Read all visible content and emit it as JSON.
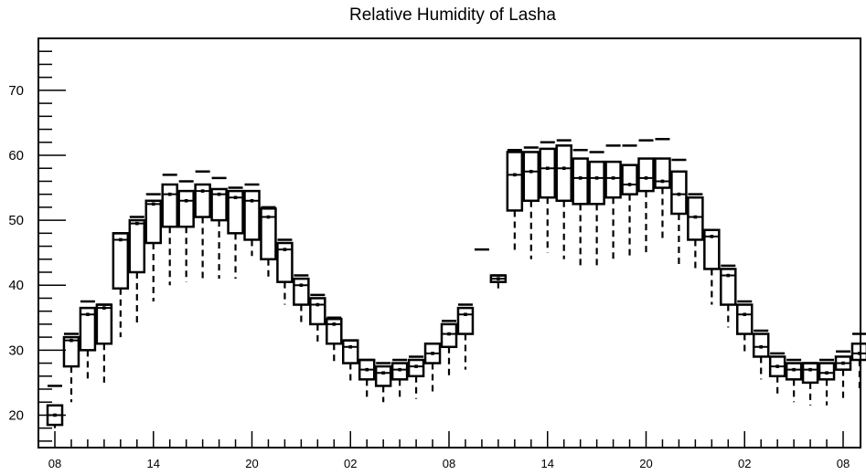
{
  "chart_data": {
    "type": "box",
    "title": "Relative Humidity of Lasha",
    "xlabel": "",
    "ylabel": "",
    "ylim": [
      15,
      78
    ],
    "ytick_values": [
      20,
      30,
      40,
      50,
      60,
      70
    ],
    "yticks": [
      "20",
      "30",
      "40",
      "50",
      "60",
      "70"
    ],
    "xticks": [
      "08",
      "14",
      "20",
      "02",
      "08",
      "14",
      "20",
      "02",
      "08"
    ],
    "grid": false,
    "legend": "none",
    "boxes": [
      {
        "q1": 18.5,
        "median": 20.0,
        "q3": 21.5,
        "min": 18.0,
        "max": 24.5
      },
      {
        "q1": 27.5,
        "median": 31.5,
        "q3": 32.0,
        "min": 22.0,
        "max": 32.5
      },
      {
        "q1": 30.0,
        "median": 35.5,
        "q3": 36.5,
        "min": 25.0,
        "max": 37.5
      },
      {
        "q1": 31.0,
        "median": 36.5,
        "q3": 37.0,
        "min": 25.0,
        "max": 37.0
      },
      {
        "q1": 39.5,
        "median": 47.0,
        "q3": 48.0,
        "min": 32.0,
        "max": 48.0
      },
      {
        "q1": 42.0,
        "median": 49.5,
        "q3": 50.0,
        "min": 34.0,
        "max": 50.5
      },
      {
        "q1": 46.5,
        "median": 52.5,
        "q3": 53.0,
        "min": 37.5,
        "max": 54.0
      },
      {
        "q1": 49.0,
        "median": 54.0,
        "q3": 55.5,
        "min": 40.0,
        "max": 57.0
      },
      {
        "q1": 49.0,
        "median": 53.0,
        "q3": 54.5,
        "min": 40.5,
        "max": 56.0
      },
      {
        "q1": 50.5,
        "median": 54.5,
        "q3": 55.5,
        "min": 41.0,
        "max": 57.5
      },
      {
        "q1": 50.0,
        "median": 54.0,
        "q3": 54.8,
        "min": 41.0,
        "max": 56.5
      },
      {
        "q1": 48.0,
        "median": 53.5,
        "q3": 54.5,
        "min": 41.0,
        "max": 55.0
      },
      {
        "q1": 47.0,
        "median": 53.0,
        "q3": 54.5,
        "min": 44.5,
        "max": 55.5
      },
      {
        "q1": 44.0,
        "median": 50.5,
        "q3": 51.8,
        "min": 41.0,
        "max": 52.0
      },
      {
        "q1": 40.5,
        "median": 45.5,
        "q3": 46.5,
        "min": 37.0,
        "max": 47.0
      },
      {
        "q1": 37.0,
        "median": 40.0,
        "q3": 41.0,
        "min": 34.0,
        "max": 41.5
      },
      {
        "q1": 34.0,
        "median": 37.0,
        "q3": 38.0,
        "min": 31.0,
        "max": 38.5
      },
      {
        "q1": 31.0,
        "median": 34.0,
        "q3": 34.8,
        "min": 28.0,
        "max": 35.0
      },
      {
        "q1": 28.0,
        "median": 30.5,
        "q3": 31.5,
        "min": 25.0,
        "max": 31.5
      },
      {
        "q1": 25.5,
        "median": 27.0,
        "q3": 28.5,
        "min": 22.5,
        "max": 28.5
      },
      {
        "q1": 24.5,
        "median": 26.5,
        "q3": 27.5,
        "min": 22.0,
        "max": 28.0
      },
      {
        "q1": 25.5,
        "median": 27.0,
        "q3": 28.0,
        "min": 22.5,
        "max": 28.5
      },
      {
        "q1": 26.0,
        "median": 27.5,
        "q3": 28.5,
        "min": 22.5,
        "max": 29.0
      },
      {
        "q1": 28.0,
        "median": 29.5,
        "q3": 31.0,
        "min": 23.0,
        "max": 31.0
      },
      {
        "q1": 30.5,
        "median": 32.5,
        "q3": 34.0,
        "min": 25.5,
        "max": 34.5
      },
      {
        "q1": 32.5,
        "median": 35.5,
        "q3": 36.5,
        "min": 27.0,
        "max": 37.0
      },
      {
        "q1": null,
        "median": null,
        "q3": null,
        "min": null,
        "max": 45.5
      },
      {
        "q1": 40.5,
        "median": 41.0,
        "q3": 41.5,
        "min": 39.5,
        "max": 41.5
      },
      {
        "q1": 51.5,
        "median": 57.0,
        "q3": 60.5,
        "min": 45.0,
        "max": 60.8
      },
      {
        "q1": 53.0,
        "median": 57.5,
        "q3": 60.5,
        "min": 44.0,
        "max": 61.2
      },
      {
        "q1": 53.5,
        "median": 58.0,
        "q3": 61.0,
        "min": 45.0,
        "max": 62.0
      },
      {
        "q1": 53.0,
        "median": 58.0,
        "q3": 61.5,
        "min": 44.0,
        "max": 62.3
      },
      {
        "q1": 52.5,
        "median": 56.5,
        "q3": 59.5,
        "min": 43.0,
        "max": 60.8
      },
      {
        "q1": 52.5,
        "median": 56.5,
        "q3": 59.0,
        "min": 43.0,
        "max": 60.5
      },
      {
        "q1": 53.5,
        "median": 56.5,
        "q3": 59.0,
        "min": 44.0,
        "max": 61.5
      },
      {
        "q1": 54.0,
        "median": 55.5,
        "q3": 58.5,
        "min": 44.5,
        "max": 61.5
      },
      {
        "q1": 54.5,
        "median": 56.5,
        "q3": 59.5,
        "min": 45.0,
        "max": 62.3
      },
      {
        "q1": 55.0,
        "median": 56.0,
        "q3": 59.5,
        "min": 47.0,
        "max": 62.5
      },
      {
        "q1": 51.0,
        "median": 54.0,
        "q3": 57.5,
        "min": 43.0,
        "max": 59.3
      },
      {
        "q1": 47.0,
        "median": 50.5,
        "q3": 53.5,
        "min": 42.0,
        "max": 54.0
      },
      {
        "q1": 42.5,
        "median": 47.5,
        "q3": 48.5,
        "min": 37.0,
        "max": 48.5
      },
      {
        "q1": 37.0,
        "median": 41.5,
        "q3": 42.5,
        "min": 33.5,
        "max": 43.0
      },
      {
        "q1": 32.5,
        "median": 35.5,
        "q3": 37.0,
        "min": 29.5,
        "max": 37.5
      },
      {
        "q1": 29.0,
        "median": 30.5,
        "q3": 32.5,
        "min": 25.5,
        "max": 33.0
      },
      {
        "q1": 26.0,
        "median": 27.5,
        "q3": 29.0,
        "min": 23.0,
        "max": 29.5
      },
      {
        "q1": 25.5,
        "median": 27.0,
        "q3": 28.0,
        "min": 22.0,
        "max": 28.5
      },
      {
        "q1": 25.0,
        "median": 27.0,
        "q3": 28.0,
        "min": 21.5,
        "max": 28.0
      },
      {
        "q1": 25.5,
        "median": 26.5,
        "q3": 28.0,
        "min": 21.5,
        "max": 28.5
      },
      {
        "q1": 27.0,
        "median": 28.0,
        "q3": 29.0,
        "min": 22.5,
        "max": 29.8
      },
      {
        "q1": 28.5,
        "median": 29.5,
        "q3": 31.0,
        "min": 23.5,
        "max": 32.5
      }
    ]
  }
}
